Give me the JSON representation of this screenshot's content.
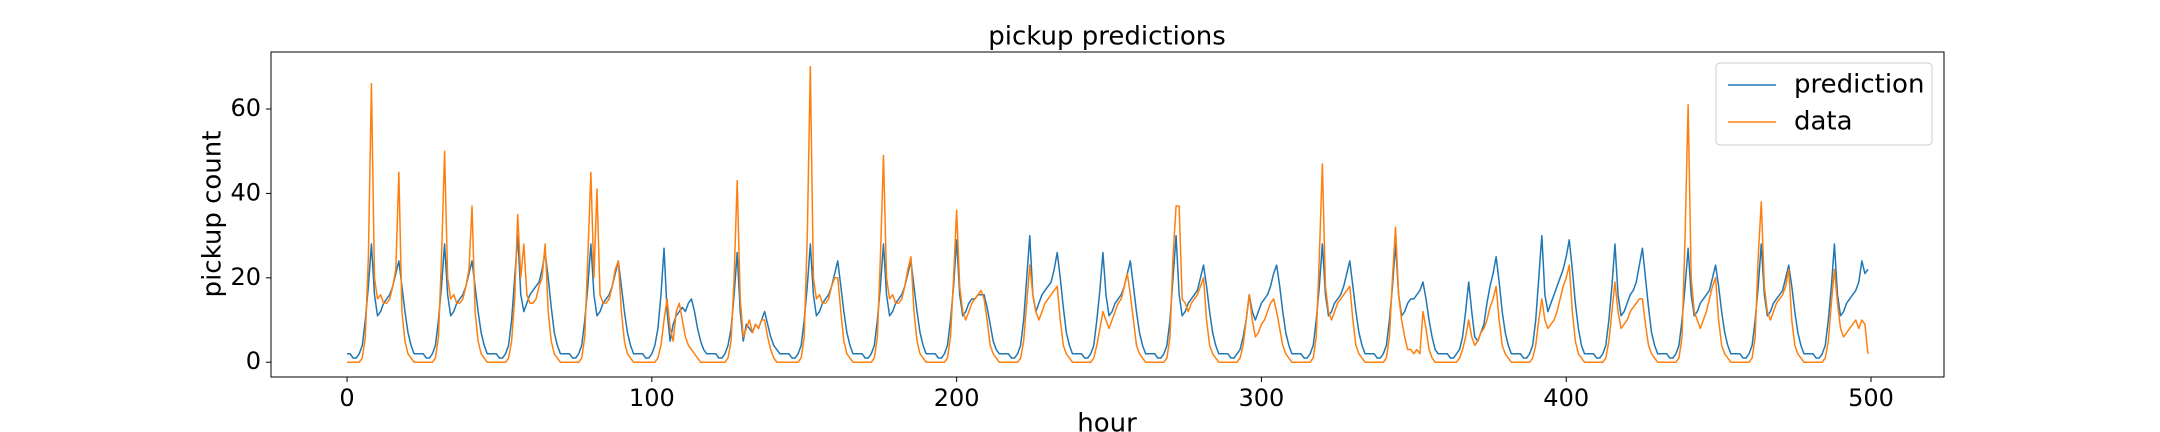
{
  "chart_data": {
    "type": "line",
    "title": "pickup predictions",
    "x_label": "hour",
    "y_label": "pickup count",
    "xlim": [
      -24.95,
      523.95
    ],
    "ylim": [
      -3.5,
      73.5
    ],
    "xticks": [
      0,
      100,
      200,
      300,
      400,
      500
    ],
    "yticks": [
      0,
      20,
      40,
      60
    ],
    "legend": "upper right",
    "x": [
      0,
      1,
      2,
      3,
      4,
      5,
      6,
      7,
      8,
      9,
      10,
      11,
      12,
      13,
      14,
      15,
      16,
      17,
      18,
      19,
      20,
      21,
      22,
      23,
      24,
      25,
      26,
      27,
      28,
      29,
      30,
      31,
      32,
      33,
      34,
      35,
      36,
      37,
      38,
      39,
      40,
      41,
      42,
      43,
      44,
      45,
      46,
      47,
      48,
      49,
      50,
      51,
      52,
      53,
      54,
      55,
      56,
      57,
      58,
      59,
      60,
      61,
      62,
      63,
      64,
      65,
      66,
      67,
      68,
      69,
      70,
      71,
      72,
      73,
      74,
      75,
      76,
      77,
      78,
      79,
      80,
      81,
      82,
      83,
      84,
      85,
      86,
      87,
      88,
      89,
      90,
      91,
      92,
      93,
      94,
      95,
      96,
      97,
      98,
      99,
      100,
      101,
      102,
      103,
      104,
      105,
      106,
      107,
      108,
      109,
      110,
      111,
      112,
      113,
      114,
      115,
      116,
      117,
      118,
      119,
      120,
      121,
      122,
      123,
      124,
      125,
      126,
      127,
      128,
      129,
      130,
      131,
      132,
      133,
      134,
      135,
      136,
      137,
      138,
      139,
      140,
      141,
      142,
      143,
      144,
      145,
      146,
      147,
      148,
      149,
      150,
      151,
      152,
      153,
      154,
      155,
      156,
      157,
      158,
      159,
      160,
      161,
      162,
      163,
      164,
      165,
      166,
      167,
      168,
      169,
      170,
      171,
      172,
      173,
      174,
      175,
      176,
      177,
      178,
      179,
      180,
      181,
      182,
      183,
      184,
      185,
      186,
      187,
      188,
      189,
      190,
      191,
      192,
      193,
      194,
      195,
      196,
      197,
      198,
      199,
      200,
      201,
      202,
      203,
      204,
      205,
      206,
      207,
      208,
      209,
      210,
      211,
      212,
      213,
      214,
      215,
      216,
      217,
      218,
      219,
      220,
      221,
      222,
      223,
      224,
      225,
      226,
      227,
      228,
      229,
      230,
      231,
      232,
      233,
      234,
      235,
      236,
      237,
      238,
      239,
      240,
      241,
      242,
      243,
      244,
      245,
      246,
      247,
      248,
      249,
      250,
      251,
      252,
      253,
      254,
      255,
      256,
      257,
      258,
      259,
      260,
      261,
      262,
      263,
      264,
      265,
      266,
      267,
      268,
      269,
      270,
      271,
      272,
      273,
      274,
      275,
      276,
      277,
      278,
      279,
      280,
      281,
      282,
      283,
      284,
      285,
      286,
      287,
      288,
      289,
      290,
      291,
      292,
      293,
      294,
      295,
      296,
      297,
      298,
      299,
      300,
      301,
      302,
      303,
      304,
      305,
      306,
      307,
      308,
      309,
      310,
      311,
      312,
      313,
      314,
      315,
      316,
      317,
      318,
      319,
      320,
      321,
      322,
      323,
      324,
      325,
      326,
      327,
      328,
      329,
      330,
      331,
      332,
      333,
      334,
      335,
      336,
      337,
      338,
      339,
      340,
      341,
      342,
      343,
      344,
      345,
      346,
      347,
      348,
      349,
      350,
      351,
      352,
      353,
      354,
      355,
      356,
      357,
      358,
      359,
      360,
      361,
      362,
      363,
      364,
      365,
      366,
      367,
      368,
      369,
      370,
      371,
      372,
      373,
      374,
      375,
      376,
      377,
      378,
      379,
      380,
      381,
      382,
      383,
      384,
      385,
      386,
      387,
      388,
      389,
      390,
      391,
      392,
      393,
      394,
      395,
      396,
      397,
      398,
      399,
      400,
      401,
      402,
      403,
      404,
      405,
      406,
      407,
      408,
      409,
      410,
      411,
      412,
      413,
      414,
      415,
      416,
      417,
      418,
      419,
      420,
      421,
      422,
      423,
      424,
      425,
      426,
      427,
      428,
      429,
      430,
      431,
      432,
      433,
      434,
      435,
      436,
      437,
      438,
      439,
      440,
      441,
      442,
      443,
      444,
      445,
      446,
      447,
      448,
      449,
      450,
      451,
      452,
      453,
      454,
      455,
      456,
      457,
      458,
      459,
      460,
      461,
      462,
      463,
      464,
      465,
      466,
      467,
      468,
      469,
      470,
      471,
      472,
      473,
      474,
      475,
      476,
      477,
      478,
      479,
      480,
      481,
      482,
      483,
      484,
      485,
      486,
      487,
      488,
      489,
      490,
      491,
      492,
      493,
      494,
      495,
      496,
      497,
      498,
      499
    ],
    "series": [
      {
        "name": "prediction",
        "color": "#1f77b4",
        "values": [
          2,
          2,
          1,
          1,
          2,
          4,
          10,
          18,
          28,
          16,
          11,
          12,
          14,
          15,
          16,
          18,
          21,
          24,
          18,
          12,
          7,
          4,
          2,
          2,
          2,
          2,
          1,
          1,
          2,
          4,
          10,
          18,
          28,
          16,
          11,
          12,
          14,
          15,
          16,
          18,
          21,
          24,
          18,
          12,
          7,
          4,
          2,
          2,
          2,
          2,
          1,
          1,
          2,
          4,
          10,
          20,
          30,
          16,
          12,
          14,
          16,
          17,
          18,
          19,
          22,
          26,
          20,
          13,
          7,
          4,
          2,
          2,
          2,
          2,
          1,
          1,
          2,
          4,
          10,
          18,
          28,
          16,
          11,
          12,
          14,
          15,
          16,
          18,
          21,
          24,
          18,
          12,
          7,
          4,
          2,
          2,
          2,
          2,
          1,
          1,
          2,
          4,
          8,
          16,
          27,
          12,
          5,
          9,
          11,
          12,
          13,
          12,
          14,
          15,
          12,
          8,
          5,
          3,
          2,
          2,
          2,
          2,
          1,
          1,
          2,
          4,
          8,
          16,
          26,
          12,
          5,
          9,
          8,
          7,
          9,
          8,
          10,
          12,
          9,
          6,
          4,
          3,
          2,
          2,
          2,
          2,
          1,
          1,
          2,
          4,
          10,
          18,
          28,
          16,
          11,
          12,
          14,
          15,
          16,
          18,
          21,
          24,
          18,
          12,
          7,
          4,
          2,
          2,
          2,
          2,
          1,
          1,
          2,
          4,
          10,
          18,
          28,
          16,
          11,
          12,
          14,
          15,
          16,
          18,
          21,
          24,
          18,
          12,
          7,
          4,
          2,
          2,
          2,
          2,
          1,
          1,
          2,
          4,
          10,
          18,
          29,
          16,
          11,
          12,
          14,
          15,
          15,
          16,
          16,
          16,
          13,
          9,
          5,
          3,
          2,
          2,
          2,
          2,
          1,
          1,
          2,
          4,
          10,
          20,
          30,
          16,
          12,
          14,
          16,
          17,
          18,
          19,
          22,
          26,
          20,
          13,
          7,
          4,
          2,
          2,
          2,
          2,
          1,
          1,
          2,
          4,
          10,
          17,
          26,
          16,
          11,
          12,
          14,
          15,
          16,
          18,
          21,
          24,
          18,
          12,
          7,
          4,
          2,
          2,
          2,
          2,
          1,
          1,
          2,
          4,
          10,
          20,
          30,
          16,
          11,
          12,
          14,
          15,
          16,
          17,
          20,
          23,
          18,
          12,
          7,
          4,
          2,
          2,
          2,
          2,
          1,
          1,
          2,
          3,
          6,
          10,
          16,
          12,
          10,
          12,
          14,
          15,
          16,
          18,
          21,
          23,
          18,
          12,
          7,
          4,
          2,
          2,
          2,
          2,
          1,
          1,
          2,
          4,
          10,
          18,
          28,
          16,
          11,
          12,
          14,
          15,
          16,
          18,
          21,
          24,
          18,
          12,
          7,
          4,
          2,
          2,
          2,
          2,
          1,
          1,
          2,
          4,
          10,
          18,
          28,
          16,
          11,
          12,
          14,
          15,
          15,
          16,
          17,
          19,
          15,
          10,
          6,
          3,
          2,
          2,
          2,
          2,
          1,
          1,
          2,
          3,
          6,
          12,
          19,
          12,
          6,
          5,
          7,
          9,
          14,
          18,
          21,
          25,
          19,
          12,
          7,
          4,
          2,
          2,
          2,
          2,
          1,
          1,
          2,
          4,
          10,
          20,
          30,
          16,
          12,
          14,
          16,
          18,
          20,
          22,
          25,
          29,
          22,
          14,
          8,
          4,
          2,
          2,
          2,
          2,
          1,
          1,
          2,
          4,
          10,
          18,
          28,
          16,
          11,
          12,
          14,
          16,
          17,
          19,
          23,
          27,
          20,
          13,
          7,
          4,
          2,
          2,
          2,
          2,
          1,
          1,
          2,
          4,
          10,
          18,
          27,
          16,
          11,
          12,
          14,
          15,
          16,
          17,
          20,
          23,
          18,
          12,
          7,
          4,
          2,
          2,
          2,
          2,
          1,
          1,
          2,
          4,
          10,
          18,
          28,
          16,
          11,
          12,
          14,
          15,
          16,
          17,
          20,
          23,
          18,
          12,
          7,
          4,
          2,
          2,
          2,
          2,
          1,
          1,
          2,
          4,
          10,
          18,
          28,
          16,
          11,
          12,
          14,
          15,
          16,
          17,
          19,
          24,
          21,
          22
        ]
      },
      {
        "name": "data",
        "color": "#ff7f0e",
        "values": [
          0,
          0,
          0,
          0,
          0,
          1,
          6,
          25,
          66,
          20,
          15,
          16,
          14,
          14,
          15,
          18,
          22,
          45,
          12,
          5,
          2,
          1,
          0,
          0,
          0,
          0,
          0,
          0,
          0,
          1,
          6,
          25,
          50,
          20,
          15,
          16,
          14,
          14,
          15,
          18,
          22,
          37,
          12,
          5,
          2,
          1,
          0,
          0,
          0,
          0,
          0,
          0,
          0,
          1,
          5,
          15,
          35,
          20,
          28,
          16,
          14,
          14,
          15,
          18,
          20,
          28,
          12,
          5,
          2,
          1,
          0,
          0,
          0,
          0,
          0,
          0,
          0,
          1,
          6,
          25,
          45,
          20,
          41,
          16,
          14,
          14,
          15,
          18,
          22,
          24,
          12,
          5,
          2,
          1,
          0,
          0,
          0,
          0,
          0,
          0,
          0,
          0,
          1,
          4,
          10,
          15,
          8,
          5,
          12,
          14,
          10,
          6,
          4,
          3,
          2,
          1,
          0,
          0,
          0,
          0,
          0,
          0,
          0,
          0,
          0,
          1,
          5,
          20,
          43,
          15,
          6,
          8,
          10,
          7,
          9,
          8,
          10,
          10,
          6,
          3,
          1,
          0,
          0,
          0,
          0,
          0,
          0,
          0,
          0,
          1,
          6,
          30,
          70,
          20,
          15,
          16,
          14,
          14,
          15,
          18,
          20,
          20,
          12,
          5,
          2,
          1,
          0,
          0,
          0,
          0,
          0,
          0,
          0,
          1,
          6,
          25,
          49,
          20,
          15,
          16,
          14,
          14,
          15,
          18,
          22,
          25,
          12,
          5,
          2,
          1,
          0,
          0,
          0,
          0,
          0,
          0,
          0,
          1,
          6,
          20,
          36,
          18,
          12,
          10,
          12,
          14,
          15,
          16,
          17,
          15,
          10,
          4,
          2,
          1,
          0,
          0,
          0,
          0,
          0,
          0,
          0,
          1,
          5,
          14,
          23,
          16,
          12,
          10,
          12,
          14,
          15,
          16,
          17,
          18,
          10,
          4,
          2,
          1,
          0,
          0,
          0,
          0,
          0,
          0,
          0,
          1,
          4,
          8,
          12,
          10,
          8,
          10,
          12,
          14,
          15,
          18,
          21,
          16,
          10,
          4,
          2,
          1,
          0,
          0,
          0,
          0,
          0,
          0,
          0,
          1,
          6,
          25,
          37,
          37,
          15,
          14,
          12,
          14,
          15,
          16,
          18,
          20,
          10,
          4,
          2,
          1,
          0,
          0,
          0,
          0,
          0,
          0,
          0,
          1,
          4,
          10,
          16,
          10,
          6,
          7,
          9,
          10,
          12,
          14,
          15,
          12,
          8,
          4,
          2,
          1,
          0,
          0,
          0,
          0,
          0,
          0,
          0,
          1,
          6,
          25,
          47,
          18,
          12,
          10,
          12,
          14,
          15,
          16,
          17,
          18,
          10,
          4,
          2,
          1,
          0,
          0,
          0,
          0,
          0,
          0,
          0,
          1,
          6,
          20,
          32,
          16,
          10,
          6,
          3,
          3,
          2,
          3,
          2,
          12,
          8,
          3,
          1,
          0,
          0,
          0,
          0,
          0,
          0,
          0,
          0,
          1,
          3,
          6,
          10,
          6,
          4,
          5,
          7,
          8,
          10,
          13,
          15,
          18,
          10,
          4,
          2,
          1,
          0,
          0,
          0,
          0,
          0,
          0,
          0,
          1,
          4,
          10,
          15,
          10,
          8,
          9,
          10,
          12,
          15,
          18,
          20,
          23,
          12,
          5,
          2,
          1,
          0,
          0,
          0,
          0,
          0,
          0,
          0,
          1,
          5,
          12,
          19,
          12,
          8,
          9,
          10,
          12,
          13,
          14,
          15,
          15,
          9,
          4,
          2,
          1,
          0,
          0,
          0,
          0,
          0,
          0,
          0,
          1,
          6,
          30,
          61,
          20,
          12,
          10,
          8,
          10,
          12,
          15,
          18,
          20,
          10,
          4,
          2,
          1,
          0,
          0,
          0,
          0,
          0,
          0,
          0,
          1,
          6,
          25,
          38,
          18,
          12,
          10,
          12,
          14,
          15,
          16,
          18,
          22,
          10,
          4,
          2,
          1,
          0,
          0,
          0,
          0,
          0,
          0,
          0,
          1,
          5,
          14,
          22,
          14,
          8,
          6,
          7,
          8,
          9,
          10,
          8,
          10,
          9,
          2
        ]
      }
    ]
  }
}
